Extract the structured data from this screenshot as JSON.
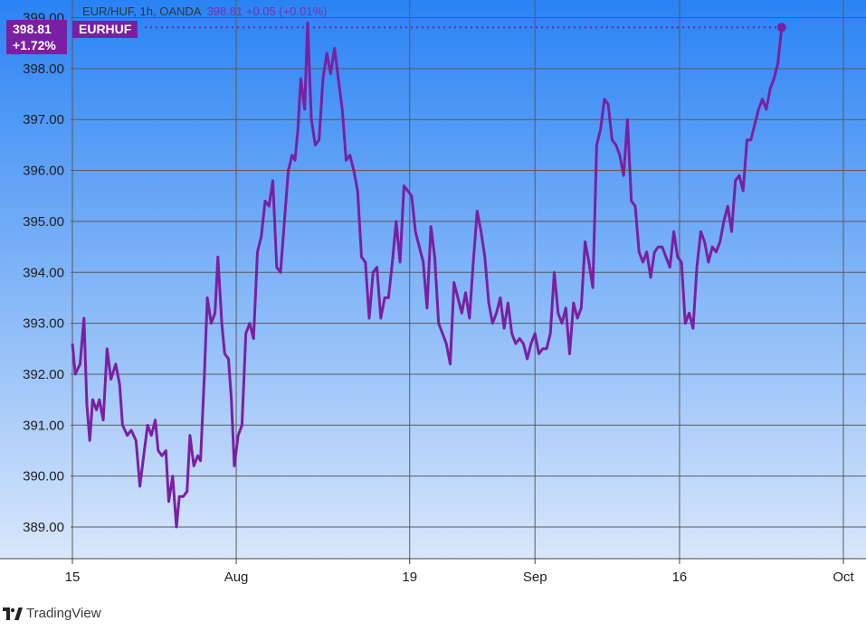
{
  "header": {
    "symbol_line": "EUR/HUF, 1h, OANDA",
    "values_line": "398.81  +0.05 (+0.01%)"
  },
  "price_label": {
    "price": "398.81",
    "change": "+1.72%"
  },
  "symbol_label": "EURHUF",
  "footer": {
    "brand": "TradingView",
    "logo_icon": "tradingview-logo-icon"
  },
  "colors": {
    "line": "#7b1fa2",
    "background_top": "#2a83f4",
    "background_bottom": "#d8e7fb",
    "grid": "#5a5a5a"
  },
  "chart_data": {
    "type": "line",
    "title": "EUR/HUF, 1h, OANDA",
    "xlabel": "",
    "ylabel": "",
    "ylim": [
      388.4,
      399.2
    ],
    "xlim": [
      0,
      83.2
    ],
    "grid": true,
    "y_ticks": [
      "389.00",
      "390.00",
      "391.00",
      "392.00",
      "393.00",
      "394.00",
      "395.00",
      "396.00",
      "397.00",
      "398.00",
      "399.00"
    ],
    "x_ticks": [
      {
        "label": "15",
        "x": 0
      },
      {
        "label": "Aug",
        "x": 17
      },
      {
        "label": "19",
        "x": 35
      },
      {
        "label": "Sep",
        "x": 48
      },
      {
        "label": "16",
        "x": 63
      },
      {
        "label": "Oct",
        "x": 80
      }
    ],
    "last_value": 398.81,
    "series": [
      {
        "values": [
          [
            0,
            392.6
          ],
          [
            0.3,
            392.0
          ],
          [
            0.8,
            392.2
          ],
          [
            1.2,
            393.1
          ],
          [
            1.5,
            391.4
          ],
          [
            1.8,
            390.7
          ],
          [
            2.1,
            391.5
          ],
          [
            2.5,
            391.3
          ],
          [
            2.8,
            391.5
          ],
          [
            3.2,
            391.1
          ],
          [
            3.6,
            392.5
          ],
          [
            4.0,
            391.9
          ],
          [
            4.5,
            392.2
          ],
          [
            4.9,
            391.8
          ],
          [
            5.2,
            391.0
          ],
          [
            5.7,
            390.8
          ],
          [
            6.1,
            390.9
          ],
          [
            6.6,
            390.7
          ],
          [
            7.0,
            389.8
          ],
          [
            7.4,
            390.4
          ],
          [
            7.8,
            391.0
          ],
          [
            8.2,
            390.8
          ],
          [
            8.6,
            391.1
          ],
          [
            8.9,
            390.5
          ],
          [
            9.3,
            390.4
          ],
          [
            9.7,
            390.5
          ],
          [
            10.0,
            389.5
          ],
          [
            10.4,
            390.0
          ],
          [
            10.8,
            389.0
          ],
          [
            11.1,
            389.6
          ],
          [
            11.5,
            389.6
          ],
          [
            11.9,
            389.7
          ],
          [
            12.2,
            390.8
          ],
          [
            12.6,
            390.2
          ],
          [
            13.0,
            390.4
          ],
          [
            13.3,
            390.3
          ],
          [
            13.7,
            392.0
          ],
          [
            14.0,
            393.5
          ],
          [
            14.4,
            393.0
          ],
          [
            14.8,
            393.2
          ],
          [
            15.1,
            394.3
          ],
          [
            15.5,
            393.0
          ],
          [
            15.8,
            392.4
          ],
          [
            16.2,
            392.3
          ],
          [
            16.5,
            391.5
          ],
          [
            16.8,
            390.2
          ],
          [
            17.2,
            390.8
          ],
          [
            17.6,
            391.0
          ],
          [
            18.0,
            392.8
          ],
          [
            18.4,
            393.0
          ],
          [
            18.8,
            392.7
          ],
          [
            19.2,
            394.4
          ],
          [
            19.6,
            394.7
          ],
          [
            20.0,
            395.4
          ],
          [
            20.4,
            395.3
          ],
          [
            20.8,
            395.8
          ],
          [
            21.2,
            394.1
          ],
          [
            21.6,
            394.0
          ],
          [
            22.0,
            395.0
          ],
          [
            22.4,
            396.0
          ],
          [
            22.8,
            396.3
          ],
          [
            23.1,
            396.2
          ],
          [
            23.4,
            396.8
          ],
          [
            23.7,
            397.8
          ],
          [
            24.1,
            397.2
          ],
          [
            24.4,
            398.9
          ],
          [
            24.8,
            397.0
          ],
          [
            25.2,
            396.5
          ],
          [
            25.6,
            396.6
          ],
          [
            26.0,
            397.8
          ],
          [
            26.4,
            398.3
          ],
          [
            26.8,
            397.9
          ],
          [
            27.2,
            398.4
          ],
          [
            27.6,
            397.8
          ],
          [
            28.0,
            397.2
          ],
          [
            28.4,
            396.2
          ],
          [
            28.8,
            396.3
          ],
          [
            29.2,
            396.0
          ],
          [
            29.6,
            395.6
          ],
          [
            30.0,
            394.3
          ],
          [
            30.4,
            394.2
          ],
          [
            30.8,
            393.1
          ],
          [
            31.2,
            394.0
          ],
          [
            31.6,
            394.1
          ],
          [
            32.0,
            393.1
          ],
          [
            32.4,
            393.5
          ],
          [
            32.8,
            393.5
          ],
          [
            33.2,
            394.2
          ],
          [
            33.6,
            395.0
          ],
          [
            34.0,
            394.2
          ],
          [
            34.4,
            395.7
          ],
          [
            34.8,
            395.6
          ],
          [
            35.2,
            395.5
          ],
          [
            35.6,
            394.8
          ],
          [
            36.0,
            394.5
          ],
          [
            36.4,
            394.2
          ],
          [
            36.8,
            393.3
          ],
          [
            37.2,
            394.9
          ],
          [
            37.6,
            394.3
          ],
          [
            38.0,
            393.0
          ],
          [
            38.4,
            392.8
          ],
          [
            38.8,
            392.6
          ],
          [
            39.2,
            392.2
          ],
          [
            39.6,
            393.8
          ],
          [
            40.0,
            393.5
          ],
          [
            40.4,
            393.2
          ],
          [
            40.8,
            393.6
          ],
          [
            41.2,
            393.1
          ],
          [
            41.6,
            394.2
          ],
          [
            42.0,
            395.2
          ],
          [
            42.4,
            394.8
          ],
          [
            42.8,
            394.3
          ],
          [
            43.2,
            393.4
          ],
          [
            43.6,
            393.0
          ],
          [
            44.0,
            393.2
          ],
          [
            44.4,
            393.5
          ],
          [
            44.8,
            392.9
          ],
          [
            45.2,
            393.4
          ],
          [
            45.6,
            392.8
          ],
          [
            46.0,
            392.6
          ],
          [
            46.4,
            392.7
          ],
          [
            46.8,
            392.6
          ],
          [
            47.2,
            392.3
          ],
          [
            47.6,
            392.6
          ],
          [
            48.0,
            392.8
          ],
          [
            48.4,
            392.4
          ],
          [
            48.8,
            392.5
          ],
          [
            49.2,
            392.5
          ],
          [
            49.6,
            392.8
          ],
          [
            50.0,
            394.0
          ],
          [
            50.4,
            393.2
          ],
          [
            50.8,
            393.0
          ],
          [
            51.2,
            393.3
          ],
          [
            51.6,
            392.4
          ],
          [
            52.0,
            393.4
          ],
          [
            52.4,
            393.1
          ],
          [
            52.8,
            393.3
          ],
          [
            53.2,
            394.6
          ],
          [
            53.6,
            394.2
          ],
          [
            54.0,
            393.7
          ],
          [
            54.4,
            396.5
          ],
          [
            54.8,
            396.8
          ],
          [
            55.2,
            397.4
          ],
          [
            55.6,
            397.3
          ],
          [
            56.0,
            396.6
          ],
          [
            56.4,
            396.5
          ],
          [
            56.8,
            396.3
          ],
          [
            57.2,
            395.9
          ],
          [
            57.6,
            397.0
          ],
          [
            58.0,
            395.4
          ],
          [
            58.4,
            395.3
          ],
          [
            58.8,
            394.4
          ],
          [
            59.2,
            394.2
          ],
          [
            59.6,
            394.4
          ],
          [
            60.0,
            393.9
          ],
          [
            60.4,
            394.4
          ],
          [
            60.8,
            394.5
          ],
          [
            61.2,
            394.5
          ],
          [
            61.6,
            394.3
          ],
          [
            62.0,
            394.1
          ],
          [
            62.4,
            394.8
          ],
          [
            62.8,
            394.3
          ],
          [
            63.2,
            394.2
          ],
          [
            63.6,
            393.0
          ],
          [
            64.0,
            393.2
          ],
          [
            64.4,
            392.9
          ],
          [
            64.8,
            394.1
          ],
          [
            65.2,
            394.8
          ],
          [
            65.6,
            394.6
          ],
          [
            66.0,
            394.2
          ],
          [
            66.4,
            394.5
          ],
          [
            66.8,
            394.4
          ],
          [
            67.2,
            394.6
          ],
          [
            67.6,
            395.0
          ],
          [
            68.0,
            395.3
          ],
          [
            68.4,
            394.8
          ],
          [
            68.8,
            395.8
          ],
          [
            69.2,
            395.9
          ],
          [
            69.6,
            395.6
          ],
          [
            70.0,
            396.6
          ],
          [
            70.4,
            396.6
          ],
          [
            70.8,
            396.9
          ],
          [
            71.2,
            397.2
          ],
          [
            71.6,
            397.4
          ],
          [
            72.0,
            397.2
          ],
          [
            72.4,
            397.6
          ],
          [
            72.8,
            397.8
          ],
          [
            73.2,
            398.1
          ],
          [
            73.6,
            398.81
          ]
        ]
      }
    ]
  }
}
